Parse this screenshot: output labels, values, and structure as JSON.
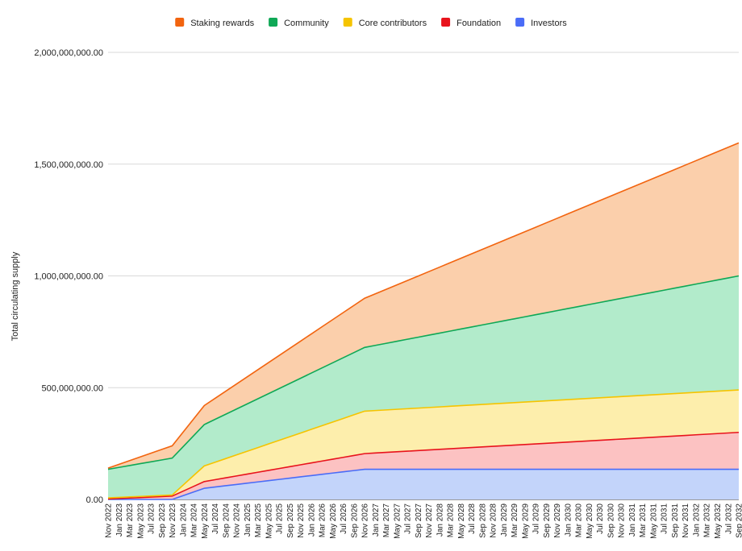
{
  "chart_data": {
    "type": "area",
    "stacked": true,
    "ylabel": "Total circulating supply",
    "xlabel": "",
    "ylim": [
      0,
      2000000000
    ],
    "grid": true,
    "legend_position": "top",
    "y_ticks": [
      {
        "value": 0,
        "label": "0.00"
      },
      {
        "value": 500000000,
        "label": "500,000,000.00"
      },
      {
        "value": 1000000000,
        "label": "1,000,000,000.00"
      },
      {
        "value": 1500000000,
        "label": "1,500,000,000.00"
      },
      {
        "value": 2000000000,
        "label": "2,000,000,000.00"
      }
    ],
    "categories": [
      "Nov 2022",
      "Jan 2023",
      "Mar 2023",
      "May 2023",
      "Jul 2023",
      "Sep 2023",
      "Nov 2023",
      "Jan 2024",
      "Mar 2024",
      "May 2024",
      "Jul 2024",
      "Sep 2024",
      "Nov 2024",
      "Jan 2025",
      "Mar 2025",
      "May 2025",
      "Jul 2025",
      "Sep 2025",
      "Nov 2025",
      "Jan 2026",
      "Mar 2026",
      "May 2026",
      "Jul 2026",
      "Sep 2026",
      "Nov 2026",
      "Jan 2027",
      "Mar 2027",
      "May 2027",
      "Jul 2027",
      "Sep 2027",
      "Nov 2027",
      "Jan 2028",
      "Mar 2028",
      "May 2028",
      "Jul 2028",
      "Sep 2028",
      "Nov 2028",
      "Jan 2029",
      "Mar 2029",
      "May 2029",
      "Jul 2029",
      "Sep 2029",
      "Nov 2029",
      "Jan 2030",
      "Mar 2030",
      "May 2030",
      "Jul 2030",
      "Sep 2030",
      "Nov 2030",
      "Jan 2031",
      "Mar 2031",
      "May 2031",
      "Jul 2031",
      "Sep 2031",
      "Nov 2031",
      "Jan 2032",
      "Mar 2032",
      "May 2032",
      "Jul 2032",
      "Sep 2032"
    ],
    "series": [
      {
        "name": "Investors",
        "color": "#4a6cf7",
        "fill": "#c3d4fa",
        "keypoints": [
          [
            0,
            0
          ],
          [
            6,
            0
          ],
          [
            9,
            50000000
          ],
          [
            24,
            135000000
          ],
          [
            59,
            135000000
          ]
        ]
      },
      {
        "name": "Foundation",
        "color": "#e8131c",
        "fill": "#fcc2c2",
        "keypoints": [
          [
            0,
            2000000
          ],
          [
            6,
            15000000
          ],
          [
            9,
            30000000
          ],
          [
            24,
            70000000
          ],
          [
            59,
            165000000
          ]
        ]
      },
      {
        "name": "Core contributors",
        "color": "#f5c400",
        "fill": "#fdeeac",
        "keypoints": [
          [
            0,
            5000000
          ],
          [
            6,
            5000000
          ],
          [
            9,
            70000000
          ],
          [
            24,
            190000000
          ],
          [
            59,
            190000000
          ]
        ]
      },
      {
        "name": "Community",
        "color": "#0fa856",
        "fill": "#b2ebcb",
        "keypoints": [
          [
            0,
            128000000
          ],
          [
            6,
            165000000
          ],
          [
            9,
            185000000
          ],
          [
            24,
            285000000
          ],
          [
            59,
            510000000
          ]
        ]
      },
      {
        "name": "Staking rewards",
        "color": "#f2640f",
        "fill": "#fbcfab",
        "keypoints": [
          [
            0,
            5000000
          ],
          [
            6,
            55000000
          ],
          [
            9,
            85000000
          ],
          [
            24,
            220000000
          ],
          [
            59,
            595000000
          ]
        ]
      }
    ],
    "legend_order": [
      "Staking rewards",
      "Community",
      "Core contributors",
      "Foundation",
      "Investors"
    ]
  }
}
